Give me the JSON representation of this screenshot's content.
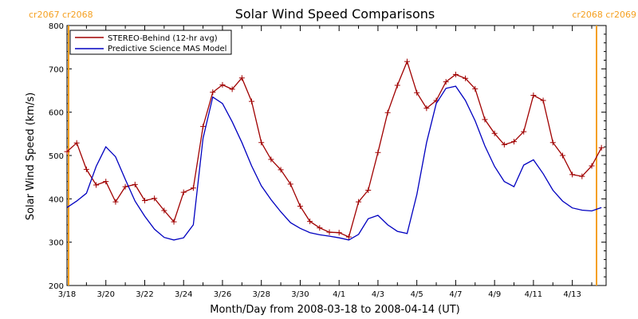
{
  "chart_data": {
    "type": "line",
    "title": "Solar Wind Speed Comparisons",
    "xlabel": "Month/Day from 2008-03-18 to 2008-04-14 (UT)",
    "ylabel": "Solar Wind Speed (km/s)",
    "ylim": [
      200,
      800
    ],
    "xlim": [
      0,
      27
    ],
    "x_unit": "days from 2008-03-18",
    "yticks": [
      200,
      300,
      400,
      500,
      600,
      700,
      800
    ],
    "xticks": [
      {
        "x": 0,
        "label": "3/18"
      },
      {
        "x": 2,
        "label": "3/20"
      },
      {
        "x": 4,
        "label": "3/22"
      },
      {
        "x": 6,
        "label": "3/24"
      },
      {
        "x": 8,
        "label": "3/26"
      },
      {
        "x": 10,
        "label": "3/28"
      },
      {
        "x": 12,
        "label": "3/30"
      },
      {
        "x": 14,
        "label": "4/1"
      },
      {
        "x": 16,
        "label": "4/3"
      },
      {
        "x": 18,
        "label": "4/5"
      },
      {
        "x": 20,
        "label": "4/7"
      },
      {
        "x": 22,
        "label": "4/9"
      },
      {
        "x": 24,
        "label": "4/11"
      },
      {
        "x": 26,
        "label": "4/13"
      }
    ],
    "carrington_markers": [
      {
        "x": 0.1,
        "left_label": "cr2067",
        "right_label": "cr2068",
        "align": "left"
      },
      {
        "x": 26.5,
        "left_label": "cr2068",
        "right_label": "cr2069",
        "align": "right"
      }
    ],
    "legend_position": "top-left",
    "series": [
      {
        "name": "STEREO-Behind (12-hr avg)",
        "color": "#a00000",
        "markers": true,
        "points": [
          [
            0,
            509
          ],
          [
            0.5,
            529
          ],
          [
            1,
            468
          ],
          [
            1.5,
            432
          ],
          [
            2,
            440
          ],
          [
            2.5,
            393
          ],
          [
            3,
            428
          ],
          [
            3.5,
            433
          ],
          [
            4,
            396
          ],
          [
            4.5,
            401
          ],
          [
            5,
            373
          ],
          [
            5.5,
            347
          ],
          [
            6,
            415
          ],
          [
            6.5,
            425
          ],
          [
            7,
            567
          ],
          [
            7.5,
            646
          ],
          [
            8,
            663
          ],
          [
            8.5,
            653
          ],
          [
            9,
            679
          ],
          [
            9.5,
            625
          ],
          [
            10,
            530
          ],
          [
            10.5,
            491
          ],
          [
            11,
            467
          ],
          [
            11.5,
            434
          ],
          [
            12,
            383
          ],
          [
            12.5,
            348
          ],
          [
            13,
            333
          ],
          [
            13.5,
            323
          ],
          [
            14,
            322
          ],
          [
            14.5,
            312
          ],
          [
            15,
            393
          ],
          [
            15.5,
            420
          ],
          [
            16,
            507
          ],
          [
            16.5,
            599
          ],
          [
            17,
            662
          ],
          [
            17.5,
            717
          ],
          [
            18,
            645
          ],
          [
            18.5,
            609
          ],
          [
            19,
            627
          ],
          [
            19.5,
            670
          ],
          [
            20,
            687
          ],
          [
            20.5,
            678
          ],
          [
            21,
            654
          ],
          [
            21.5,
            583
          ],
          [
            22,
            551
          ],
          [
            22.5,
            525
          ],
          [
            23,
            532
          ],
          [
            23.5,
            555
          ],
          [
            24,
            639
          ],
          [
            24.5,
            627
          ],
          [
            25,
            530
          ],
          [
            25.5,
            500
          ],
          [
            26,
            456
          ],
          [
            26.5,
            452
          ],
          [
            27,
            476
          ],
          [
            27.5,
            518
          ]
        ]
      },
      {
        "name": "Predictive Science MAS Model",
        "color": "#0000c0",
        "markers": false,
        "points": [
          [
            0,
            380
          ],
          [
            0.5,
            395
          ],
          [
            1,
            413
          ],
          [
            1.5,
            475
          ],
          [
            2,
            520
          ],
          [
            2.5,
            497
          ],
          [
            3,
            445
          ],
          [
            3.5,
            395
          ],
          [
            4,
            360
          ],
          [
            4.5,
            330
          ],
          [
            5,
            311
          ],
          [
            5.5,
            305
          ],
          [
            6,
            310
          ],
          [
            6.5,
            340
          ],
          [
            7,
            540
          ],
          [
            7.5,
            635
          ],
          [
            8,
            620
          ],
          [
            8.5,
            578
          ],
          [
            9,
            530
          ],
          [
            9.5,
            476
          ],
          [
            10,
            430
          ],
          [
            10.5,
            398
          ],
          [
            11,
            370
          ],
          [
            11.5,
            345
          ],
          [
            12,
            332
          ],
          [
            12.5,
            322
          ],
          [
            13,
            317
          ],
          [
            13.5,
            314
          ],
          [
            14,
            310
          ],
          [
            14.5,
            305
          ],
          [
            15,
            318
          ],
          [
            15.5,
            354
          ],
          [
            16,
            362
          ],
          [
            16.5,
            340
          ],
          [
            17,
            325
          ],
          [
            17.5,
            320
          ],
          [
            18,
            410
          ],
          [
            18.5,
            530
          ],
          [
            19,
            620
          ],
          [
            19.5,
            655
          ],
          [
            20,
            660
          ],
          [
            20.5,
            627
          ],
          [
            21,
            580
          ],
          [
            21.5,
            522
          ],
          [
            22,
            475
          ],
          [
            22.5,
            440
          ],
          [
            23,
            428
          ],
          [
            23.5,
            478
          ],
          [
            24,
            490
          ],
          [
            24.5,
            458
          ],
          [
            25,
            420
          ],
          [
            25.5,
            395
          ],
          [
            26,
            379
          ],
          [
            26.5,
            374
          ],
          [
            27,
            372
          ],
          [
            27.5,
            380
          ]
        ]
      }
    ]
  }
}
